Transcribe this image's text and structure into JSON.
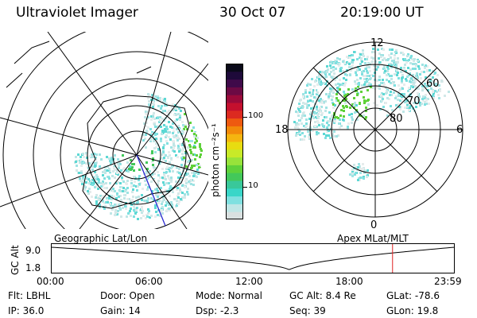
{
  "header": {
    "instrument": "Ultraviolet Imager",
    "date": "30 Oct 07",
    "time": "20:19:00 UT"
  },
  "colorbar": {
    "units": "photon cm⁻²s⁻¹",
    "ticks": [
      "100",
      "10"
    ],
    "colors": [
      "#d9e0e0",
      "#bfe6e6",
      "#7fe0e0",
      "#39d6c8",
      "#39c89a",
      "#43c85a",
      "#5fd13a",
      "#98e33a",
      "#c8ea28",
      "#e8dc10",
      "#f5b510",
      "#f28a0a",
      "#ee5a10",
      "#dc2a20",
      "#c4102e",
      "#9a0a3a",
      "#6c0a44",
      "#3f0a4a",
      "#1e0a3a",
      "#0a0a1a"
    ]
  },
  "geo_panel": {
    "label": "Geographic Lat/Lon"
  },
  "mag_panel": {
    "label": "Apex MLat/MLT",
    "mlt_labels": {
      "top": "12",
      "left": "18",
      "right": "6",
      "bottom": "0"
    },
    "lat_labels": [
      "60",
      "70",
      "80"
    ]
  },
  "timeline": {
    "ylabel": "GC Alt",
    "yticks": [
      "9.0",
      "1.8"
    ],
    "xticks": [
      "00:00",
      "06:00",
      "12:00",
      "18:00",
      "23:59"
    ],
    "current_time_fraction": 0.846
  },
  "info": {
    "rows": [
      [
        {
          "label": "Flt:",
          "value": "LBHL"
        },
        {
          "label": "Door:",
          "value": "Open"
        },
        {
          "label": "Mode:",
          "value": "Normal"
        },
        {
          "label": "GC Alt:",
          "value": "8.4 Re"
        },
        {
          "label": "GLat:",
          "value": "-78.6"
        }
      ],
      [
        {
          "label": "IP:",
          "value": "36.0"
        },
        {
          "label": "Gain:",
          "value": "14"
        },
        {
          "label": "Dsp:",
          "value": "-2.3"
        },
        {
          "label": "Seq:",
          "value": "39"
        },
        {
          "label": "GLon:",
          "value": "19.8"
        }
      ]
    ]
  }
}
